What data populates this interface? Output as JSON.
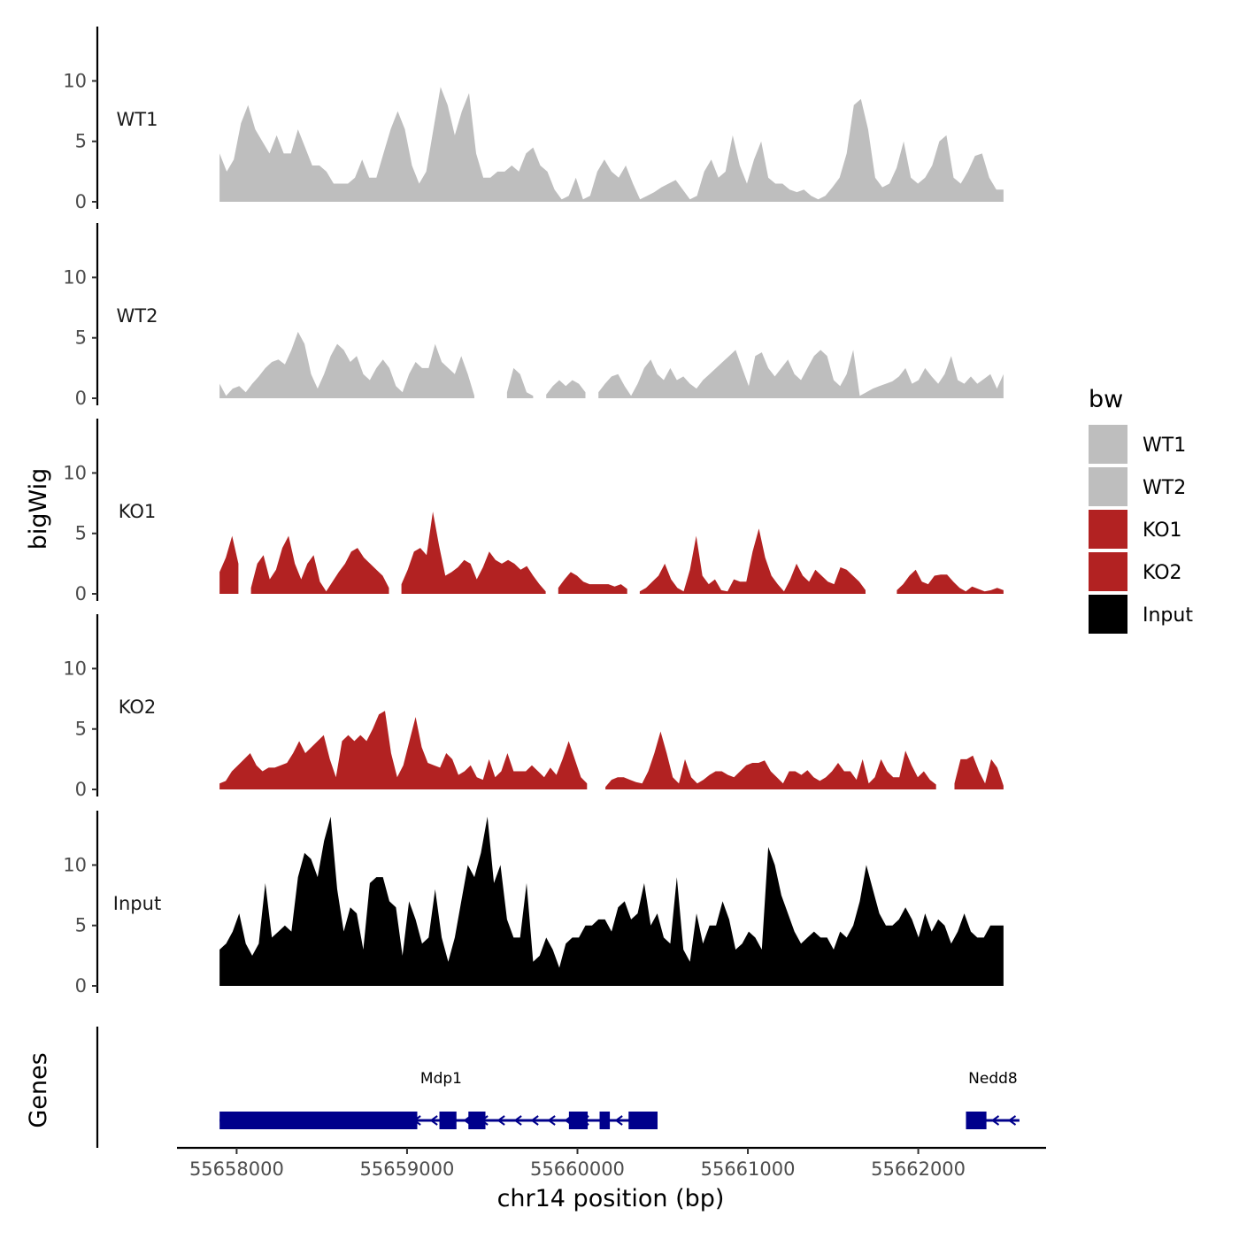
{
  "chart_data": {
    "type": "area",
    "x_range": [
      55657900,
      55662500
    ],
    "xlim": [
      55657650,
      55662750
    ],
    "ylim": [
      0,
      14.5
    ],
    "y_ticks": [
      0,
      5,
      10
    ],
    "x_ticks": [
      55658000,
      55659000,
      55660000,
      55661000,
      55662000
    ],
    "x_tick_labels": [
      "55658000",
      "55659000",
      "55660000",
      "55661000",
      "55662000"
    ],
    "xlabel": "chr14 position (bp)",
    "ylabel": "bigWig",
    "genes_label": "Genes",
    "legend": {
      "title": "bw",
      "entries": [
        {
          "label": "WT1",
          "color": "#bebebe"
        },
        {
          "label": "WT2",
          "color": "#bebebe"
        },
        {
          "label": "KO1",
          "color": "#b22222"
        },
        {
          "label": "KO2",
          "color": "#b22222"
        },
        {
          "label": "Input",
          "color": "#000000"
        }
      ]
    },
    "series": [
      {
        "name": "WT1",
        "color": "#bebebe",
        "values": [
          4,
          2.5,
          3.5,
          6.5,
          8,
          6,
          5,
          4,
          5.5,
          4,
          4,
          6,
          4.5,
          3,
          3,
          2.5,
          1.5,
          1.5,
          1.5,
          2,
          3.5,
          2,
          2,
          4,
          6,
          7.5,
          6,
          3,
          1.5,
          2.5,
          6,
          9.5,
          8,
          5.5,
          7.5,
          9,
          4,
          2,
          2,
          2.5,
          2.5,
          3,
          2.5,
          4,
          4.5,
          3,
          2.5,
          1,
          0.2,
          0.5,
          2,
          0.2,
          0.5,
          2.5,
          3.5,
          2.5,
          2,
          3,
          1.5,
          0.2,
          0.5,
          0.8,
          1.2,
          1.5,
          1.8,
          1,
          0.2,
          0.5,
          2.5,
          3.5,
          2,
          2.5,
          5.5,
          3,
          1.5,
          3.5,
          5,
          2,
          1.5,
          1.5,
          1,
          0.8,
          1,
          0.5,
          0.2,
          0.5,
          1.2,
          2,
          4,
          8,
          8.5,
          6,
          2,
          1.2,
          1.5,
          2.8,
          5,
          2,
          1.5,
          2,
          3,
          5,
          5.5,
          2,
          1.5,
          2.5,
          3.8,
          4,
          2,
          1,
          1
        ]
      },
      {
        "name": "WT2",
        "color": "#bebebe",
        "values": [
          1.2,
          0.2,
          0.8,
          1,
          0.5,
          1.2,
          1.8,
          2.5,
          3,
          3.2,
          2.8,
          4,
          5.5,
          4.5,
          2,
          0.8,
          2,
          3.5,
          4.5,
          4,
          3,
          3.5,
          2,
          1.5,
          2.5,
          3.2,
          2.5,
          1,
          0.5,
          2,
          3,
          2.5,
          2.5,
          4.5,
          3,
          2.5,
          2,
          3.5,
          2,
          0.2,
          null,
          null,
          null,
          null,
          0.5,
          2.5,
          2,
          0.5,
          0.2,
          null,
          0.3,
          1,
          1.5,
          1,
          1.5,
          1.2,
          0.5,
          null,
          0.5,
          1.2,
          1.8,
          2,
          1,
          0.2,
          1.2,
          2.5,
          3.2,
          2,
          1.5,
          2.5,
          1.5,
          1.8,
          1.2,
          0.8,
          1.5,
          2,
          2.5,
          3,
          3.5,
          4,
          2.5,
          1,
          3.5,
          3.8,
          2.5,
          1.8,
          2.5,
          3.2,
          2,
          1.5,
          2.5,
          3.5,
          4,
          3.5,
          1.5,
          1,
          2,
          4,
          0.2,
          0.5,
          0.8,
          1,
          1.2,
          1.4,
          1.8,
          2.5,
          1.2,
          1.5,
          2.5,
          1.8,
          1.2,
          2,
          3.5,
          1.5,
          1.2,
          1.8,
          1.2,
          1.6,
          2,
          0.8,
          2
        ]
      },
      {
        "name": "KO1",
        "color": "#b22222",
        "values": [
          1.8,
          3,
          4.8,
          2.5,
          null,
          0.5,
          2.5,
          3.2,
          1.2,
          2,
          3.8,
          4.8,
          2.5,
          1.2,
          2.5,
          3.2,
          1,
          0.2,
          1,
          1.8,
          2.5,
          3.5,
          3.8,
          3,
          2.5,
          2,
          1.5,
          0.5,
          null,
          0.8,
          2,
          3.5,
          3.8,
          3.2,
          6.8,
          4,
          1.5,
          1.8,
          2.2,
          2.8,
          2.5,
          1.2,
          2.2,
          3.5,
          2.8,
          2.5,
          2.8,
          2.5,
          2,
          2.3,
          1.5,
          0.8,
          0.2,
          null,
          0.5,
          1.2,
          1.8,
          1.5,
          1,
          0.8,
          0.8,
          0.8,
          0.8,
          0.6,
          0.8,
          0.4,
          null,
          0.2,
          0.5,
          1,
          1.5,
          2.5,
          1.2,
          0.5,
          0.2,
          2,
          4.8,
          1.5,
          0.8,
          1.2,
          0.3,
          0.2,
          1.2,
          1,
          1,
          3.5,
          5.4,
          3,
          1.5,
          0.8,
          0.2,
          1.2,
          2.5,
          1.5,
          1,
          2,
          1.5,
          1,
          0.8,
          2.2,
          2,
          1.5,
          1,
          0.3,
          null,
          null,
          null,
          null,
          0.3,
          0.8,
          1.5,
          2,
          1,
          0.8,
          1.5,
          1.6,
          1.6,
          1,
          0.5,
          0.2,
          0.6,
          0.4,
          0.2,
          0.3,
          0.5,
          0.3
        ]
      },
      {
        "name": "KO2",
        "color": "#b22222",
        "values": [
          0.5,
          0.7,
          1.5,
          2,
          2.5,
          3,
          2,
          1.5,
          1.8,
          1.8,
          2,
          2.2,
          3,
          4,
          3,
          3.5,
          4,
          4.5,
          2.5,
          1,
          4,
          4.5,
          4,
          4.5,
          4,
          5,
          6.2,
          6.5,
          3,
          1,
          2,
          4,
          6,
          3.5,
          2.2,
          2,
          1.8,
          3,
          2.5,
          1.2,
          1.5,
          2,
          1,
          0.8,
          2.5,
          1,
          1.5,
          3,
          1.5,
          1.5,
          1.5,
          2,
          1.5,
          1,
          1.8,
          1.2,
          2.5,
          4,
          2.5,
          1,
          0.5,
          null,
          null,
          0.2,
          0.8,
          1,
          1,
          0.8,
          0.6,
          0.5,
          1.5,
          3,
          4.8,
          3,
          1,
          0.5,
          2.5,
          1,
          0.5,
          0.8,
          1.2,
          1.5,
          1.5,
          1.2,
          1,
          1.5,
          2,
          2.2,
          2.2,
          2.4,
          1.5,
          1,
          0.5,
          1.5,
          1.5,
          1.2,
          1.6,
          1,
          0.7,
          1,
          1.5,
          2.2,
          1.5,
          1.5,
          0.8,
          2.5,
          0.5,
          1,
          2.5,
          1.5,
          1,
          1,
          3.2,
          2,
          1,
          1.5,
          0.8,
          0.4,
          null,
          null,
          0.5,
          2.5,
          2.5,
          2.8,
          1.5,
          0.5,
          2.5,
          1.8,
          0.3
        ]
      },
      {
        "name": "Input",
        "color": "#000000",
        "values": [
          3,
          3.5,
          4.5,
          6,
          3.5,
          2.5,
          3.5,
          8.5,
          4,
          4.5,
          5,
          4.5,
          9,
          11,
          10.5,
          9,
          12,
          14,
          8,
          4.5,
          6.5,
          6,
          3,
          8.5,
          9,
          9,
          7,
          6.5,
          2.5,
          7,
          5.5,
          3.5,
          4,
          8,
          4,
          2,
          4,
          7,
          10,
          9,
          11,
          14,
          8.5,
          10,
          5.5,
          4,
          4,
          8.5,
          2,
          2.5,
          4,
          3,
          1.5,
          3.5,
          4,
          4,
          5,
          5,
          5.5,
          5.5,
          4.5,
          6.5,
          7,
          5.5,
          6,
          8.5,
          5,
          6,
          4,
          3.5,
          9,
          3,
          2,
          6,
          3.5,
          5,
          5,
          7,
          5.5,
          3,
          3.5,
          4.5,
          4,
          3,
          11.5,
          10,
          7.5,
          6,
          4.5,
          3.5,
          4,
          4.5,
          4,
          4,
          3,
          4.5,
          4,
          5,
          7,
          10,
          8,
          6,
          5,
          5,
          5.5,
          6.5,
          5.5,
          4,
          6,
          4.5,
          5.5,
          5,
          3.5,
          4.5,
          6,
          4.5,
          4,
          4,
          5,
          5,
          5
        ]
      }
    ],
    "genes": {
      "color": "#00008b",
      "items": [
        {
          "name": "Mdp1",
          "strand": "-",
          "start": 55657900,
          "end": 55660470,
          "exons": [
            [
              55657900,
              55659060
            ],
            [
              55659190,
              55659290
            ],
            [
              55659360,
              55659460
            ],
            [
              55659950,
              55660060
            ],
            [
              55660130,
              55660190
            ],
            [
              55660300,
              55660470
            ]
          ]
        },
        {
          "name": "Nedd8",
          "strand": "-",
          "start": 55662280,
          "end": 55662490,
          "exons": [
            [
              55662280,
              55662400
            ]
          ]
        }
      ]
    }
  }
}
